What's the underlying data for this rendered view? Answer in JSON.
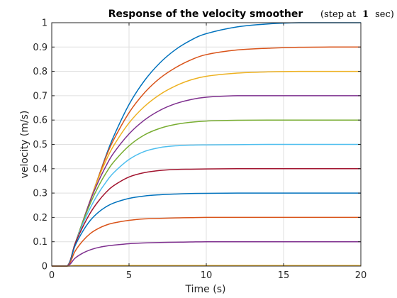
{
  "chart_data": {
    "type": "line",
    "title": "Response of the velocity smoother",
    "subtitle": {
      "pre": "(step at",
      "value": "1",
      "post": "sec)"
    },
    "xlabel": "Time (s)",
    "ylabel": "velocity (m/s)",
    "xlim": [
      0,
      20
    ],
    "ylim": [
      0,
      1
    ],
    "xticks": [
      0,
      5,
      10,
      15,
      20
    ],
    "yticks": [
      0,
      0.1,
      0.2,
      0.3,
      0.4,
      0.5,
      0.6,
      0.7,
      0.8,
      0.9,
      1
    ],
    "xtick_labels": [
      "0",
      "5",
      "10",
      "15",
      "20"
    ],
    "ytick_labels": [
      "0",
      "0.1",
      "0.2",
      "0.3",
      "0.4",
      "0.5",
      "0.6",
      "0.7",
      "0.8",
      "0.9",
      "1"
    ],
    "grid": true,
    "x": [
      0,
      1,
      1.5,
      2,
      2.5,
      3,
      3.5,
      4,
      5,
      6,
      7,
      8,
      9,
      10,
      12,
      14,
      16,
      18,
      20
    ],
    "series": [
      {
        "color": "#0072BD",
        "values": [
          0,
          0,
          0.09,
          0.181,
          0.272,
          0.362,
          0.452,
          0.532,
          0.664,
          0.762,
          0.835,
          0.889,
          0.928,
          0.955,
          0.983,
          0.995,
          1.0,
          1.0,
          1.0
        ]
      },
      {
        "color": "#D95319",
        "values": [
          0,
          0,
          0.09,
          0.181,
          0.272,
          0.362,
          0.447,
          0.518,
          0.63,
          0.712,
          0.772,
          0.815,
          0.847,
          0.869,
          0.888,
          0.895,
          0.899,
          0.9,
          0.9
        ]
      },
      {
        "color": "#EDB120",
        "values": [
          0,
          0,
          0.09,
          0.181,
          0.272,
          0.358,
          0.432,
          0.494,
          0.588,
          0.656,
          0.705,
          0.74,
          0.765,
          0.78,
          0.793,
          0.798,
          0.8,
          0.8,
          0.8
        ]
      },
      {
        "color": "#7E2F8E",
        "values": [
          0,
          0,
          0.09,
          0.181,
          0.27,
          0.345,
          0.41,
          0.464,
          0.543,
          0.6,
          0.64,
          0.667,
          0.684,
          0.694,
          0.7,
          0.7,
          0.7,
          0.7,
          0.7
        ]
      },
      {
        "color": "#77AC30",
        "values": [
          0,
          0,
          0.09,
          0.18,
          0.258,
          0.325,
          0.381,
          0.427,
          0.494,
          0.539,
          0.566,
          0.582,
          0.591,
          0.596,
          0.599,
          0.6,
          0.6,
          0.6,
          0.6
        ]
      },
      {
        "color": "#4DBEEE",
        "values": [
          0,
          0,
          0.09,
          0.172,
          0.24,
          0.297,
          0.344,
          0.383,
          0.438,
          0.471,
          0.487,
          0.494,
          0.497,
          0.498,
          0.499,
          0.5,
          0.5,
          0.5,
          0.5
        ]
      },
      {
        "color": "#A2142F",
        "values": [
          0,
          0,
          0.09,
          0.16,
          0.219,
          0.265,
          0.302,
          0.33,
          0.366,
          0.384,
          0.393,
          0.397,
          0.398,
          0.399,
          0.4,
          0.4,
          0.4,
          0.4,
          0.4
        ]
      },
      {
        "color": "#0072BD",
        "values": [
          0,
          0,
          0.082,
          0.142,
          0.188,
          0.22,
          0.243,
          0.259,
          0.278,
          0.288,
          0.293,
          0.296,
          0.298,
          0.299,
          0.3,
          0.3,
          0.3,
          0.3,
          0.3
        ]
      },
      {
        "color": "#D95319",
        "values": [
          0,
          0,
          0.06,
          0.103,
          0.134,
          0.154,
          0.168,
          0.177,
          0.188,
          0.194,
          0.196,
          0.198,
          0.199,
          0.2,
          0.2,
          0.2,
          0.2,
          0.2,
          0.2
        ]
      },
      {
        "color": "#7E2F8E",
        "values": [
          0,
          0,
          0.032,
          0.053,
          0.067,
          0.076,
          0.082,
          0.086,
          0.092,
          0.095,
          0.097,
          0.098,
          0.099,
          0.1,
          0.1,
          0.1,
          0.1,
          0.1,
          0.1
        ]
      },
      {
        "color": "#EDB120",
        "values": [
          0,
          0,
          0.002,
          0.002,
          0.002,
          0.002,
          0.002,
          0.002,
          0.002,
          0.002,
          0.002,
          0.002,
          0.002,
          0.002,
          0.002,
          0.002,
          0.002,
          0.002,
          0.002
        ]
      }
    ]
  }
}
